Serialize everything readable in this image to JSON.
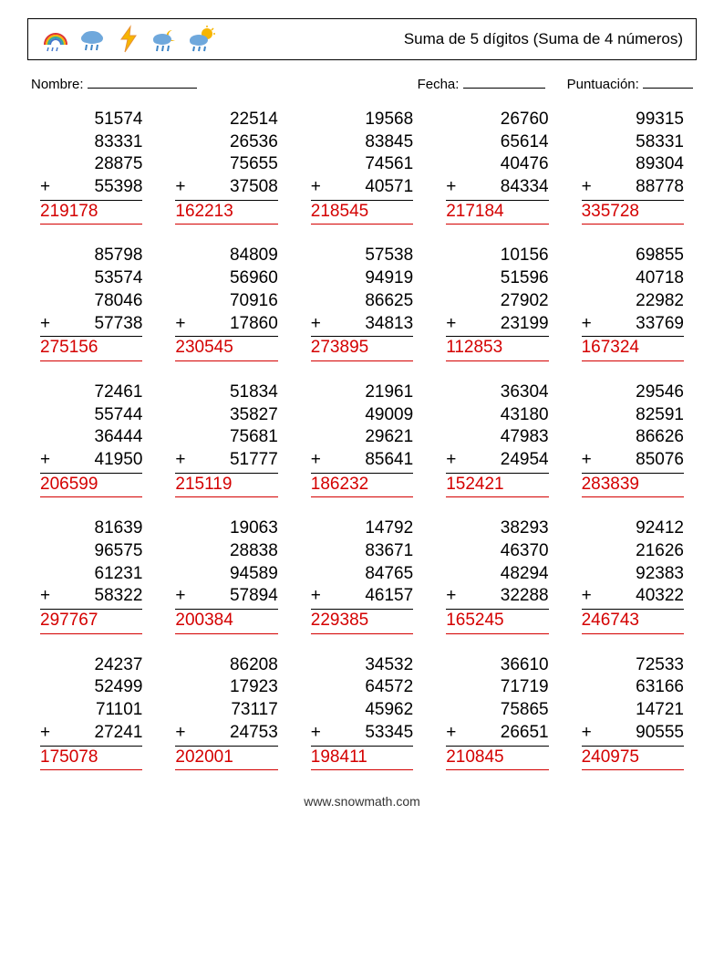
{
  "title": "Suma de 5 dígitos (Suma de 4 números)",
  "labels": {
    "name": "Nombre:",
    "date": "Fecha:",
    "score": "Puntuación:"
  },
  "colors": {
    "answer": "#d40000",
    "text": "#000000",
    "background": "#ffffff"
  },
  "footer": "www.snowmath.com",
  "problems": [
    {
      "a": [
        "51574",
        "83331",
        "28875",
        "55398"
      ],
      "ans": "219178"
    },
    {
      "a": [
        "22514",
        "26536",
        "75655",
        "37508"
      ],
      "ans": "162213"
    },
    {
      "a": [
        "19568",
        "83845",
        "74561",
        "40571"
      ],
      "ans": "218545"
    },
    {
      "a": [
        "26760",
        "65614",
        "40476",
        "84334"
      ],
      "ans": "217184"
    },
    {
      "a": [
        "99315",
        "58331",
        "89304",
        "88778"
      ],
      "ans": "335728"
    },
    {
      "a": [
        "85798",
        "53574",
        "78046",
        "57738"
      ],
      "ans": "275156"
    },
    {
      "a": [
        "84809",
        "56960",
        "70916",
        "17860"
      ],
      "ans": "230545"
    },
    {
      "a": [
        "57538",
        "94919",
        "86625",
        "34813"
      ],
      "ans": "273895"
    },
    {
      "a": [
        "10156",
        "51596",
        "27902",
        "23199"
      ],
      "ans": "112853"
    },
    {
      "a": [
        "69855",
        "40718",
        "22982",
        "33769"
      ],
      "ans": "167324"
    },
    {
      "a": [
        "72461",
        "55744",
        "36444",
        "41950"
      ],
      "ans": "206599"
    },
    {
      "a": [
        "51834",
        "35827",
        "75681",
        "51777"
      ],
      "ans": "215119"
    },
    {
      "a": [
        "21961",
        "49009",
        "29621",
        "85641"
      ],
      "ans": "186232"
    },
    {
      "a": [
        "36304",
        "43180",
        "47983",
        "24954"
      ],
      "ans": "152421"
    },
    {
      "a": [
        "29546",
        "82591",
        "86626",
        "85076"
      ],
      "ans": "283839"
    },
    {
      "a": [
        "81639",
        "96575",
        "61231",
        "58322"
      ],
      "ans": "297767"
    },
    {
      "a": [
        "19063",
        "28838",
        "94589",
        "57894"
      ],
      "ans": "200384"
    },
    {
      "a": [
        "14792",
        "83671",
        "84765",
        "46157"
      ],
      "ans": "229385"
    },
    {
      "a": [
        "38293",
        "46370",
        "48294",
        "32288"
      ],
      "ans": "165245"
    },
    {
      "a": [
        "92412",
        "21626",
        "92383",
        "40322"
      ],
      "ans": "246743"
    },
    {
      "a": [
        "24237",
        "52499",
        "71101",
        "27241"
      ],
      "ans": "175078"
    },
    {
      "a": [
        "86208",
        "17923",
        "73117",
        "24753"
      ],
      "ans": "202001"
    },
    {
      "a": [
        "34532",
        "64572",
        "45962",
        "53345"
      ],
      "ans": "198411"
    },
    {
      "a": [
        "36610",
        "71719",
        "75865",
        "26651"
      ],
      "ans": "210845"
    },
    {
      "a": [
        "72533",
        "63166",
        "14721",
        "90555"
      ],
      "ans": "240975"
    }
  ],
  "icons": {
    "rainbow": "rainbow-icon",
    "raincloud": "rain-cloud-icon",
    "lightning": "lightning-icon",
    "nightrain": "night-rain-icon",
    "suncloud": "sun-cloud-rain-icon"
  }
}
